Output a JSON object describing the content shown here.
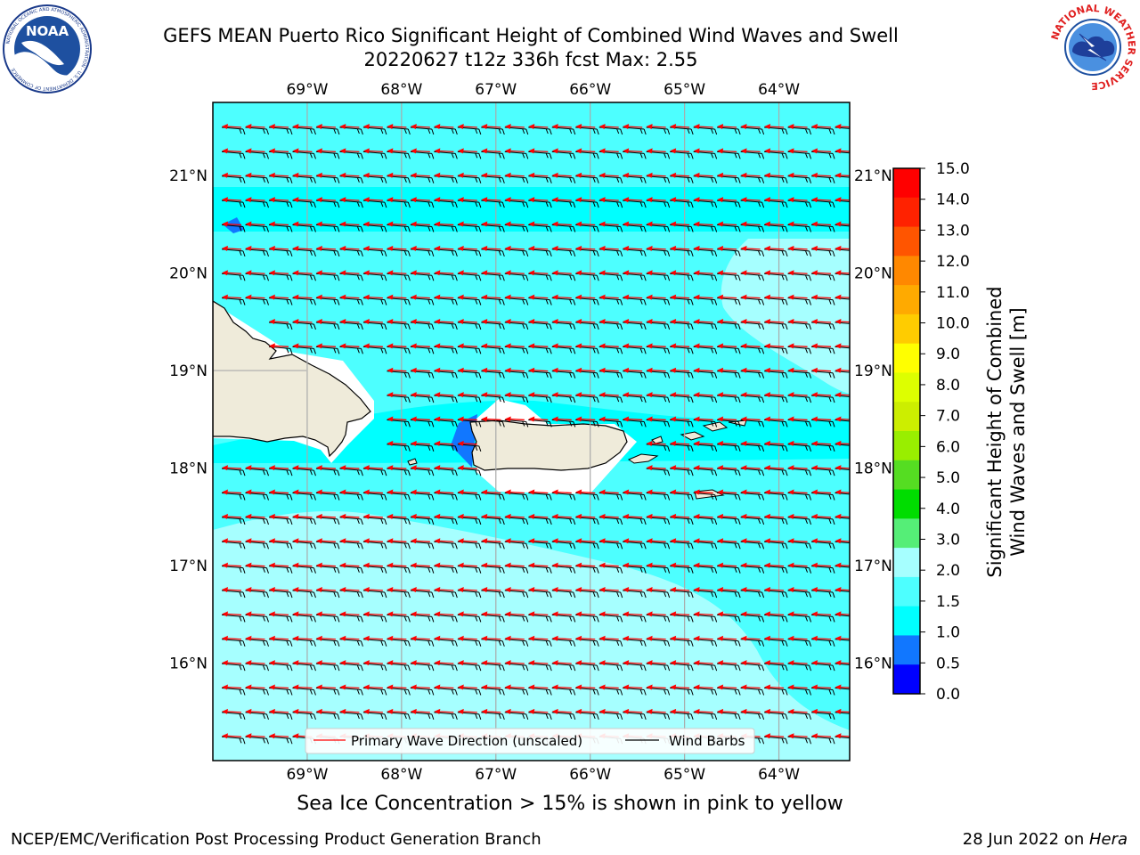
{
  "header": {
    "title_line1": "GEFS MEAN Puerto Rico Significant Height of Combined Wind Waves and Swell",
    "title_line2": "20220627 t12z 336h fcst   Max: 2.55"
  },
  "logos": {
    "left": {
      "icon": "noaa-logo-icon",
      "text": "NOAA",
      "ring_text": "NATIONAL OCEANIC AND ATMOSPHERIC ADMINISTRATION · U.S. DEPARTMENT OF COMMERCE"
    },
    "right": {
      "icon": "nws-logo-icon",
      "ring_text": "NATIONAL WEATHER SERVICE"
    }
  },
  "map": {
    "lon_labels": [
      "69°W",
      "68°W",
      "67°W",
      "66°W",
      "65°W",
      "64°W"
    ],
    "lat_labels": [
      "21°N",
      "20°N",
      "19°N",
      "18°N",
      "17°N",
      "16°N"
    ],
    "lon_range": [
      -70.0,
      -63.25
    ],
    "lat_range": [
      15.0,
      21.75
    ],
    "colors": {
      "ocean_low": "#00ffff",
      "ocean_mid": "#4dffff",
      "ocean_high": "#a6ffff",
      "land": "#efebda",
      "wave_arrow": "#ff0000",
      "wind_barb": "#000000",
      "grid": "#aaaaaa"
    },
    "legend": {
      "wave_label": "Primary Wave Direction (unscaled)",
      "barb_label": "Wind Barbs"
    }
  },
  "colorbar": {
    "label_line1": "Significant Height of Combined",
    "label_line2": "Wind Waves and Swell [m]",
    "ticks": [
      "15.0",
      "14.0",
      "13.0",
      "12.0",
      "11.0",
      "10.0",
      "9.0",
      "8.0",
      "7.0",
      "6.0",
      "5.0",
      "4.0",
      "3.0",
      "2.0",
      "1.5",
      "1.0",
      "0.5",
      "0.0"
    ],
    "segment_colors": [
      "#ff0000",
      "#ff2200",
      "#ff5500",
      "#ff8800",
      "#ffaa00",
      "#ffcc00",
      "#ffff00",
      "#ddff00",
      "#ccee00",
      "#99ee00",
      "#55dd22",
      "#00dd00",
      "#55ee77",
      "#a6ffff",
      "#4dffff",
      "#00ffff",
      "#1177ff",
      "#0000ff"
    ]
  },
  "footer": {
    "ice_note": "Sea Ice Concentration > 15% is shown in pink to yellow",
    "left": "NCEP/EMC/Verification Post Processing Product Generation Branch",
    "date": "28 Jun 2022 on ",
    "machine": "Hera"
  }
}
